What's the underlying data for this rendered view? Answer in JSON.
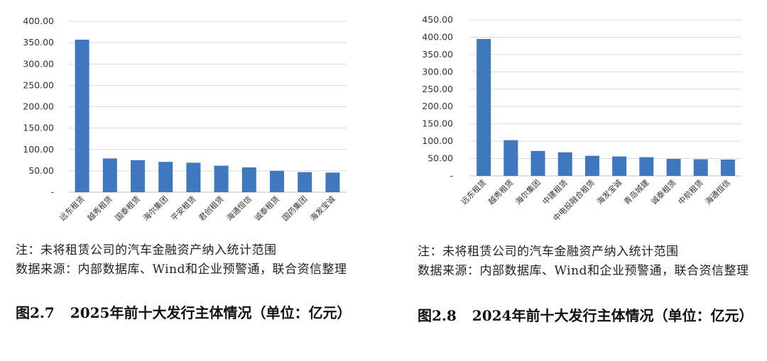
{
  "charts": [
    {
      "note": "注：未将租赁公司的汽车金融资产纳入统计范围",
      "source": "数据来源：内部数据库、Wind和企业预警通，联合资信整理",
      "fig_number": "图2.7",
      "fig_title": "2025年前十大发行主体情况（单位：亿元）",
      "colors": {
        "bar": "#3f78bf",
        "grid": "#d9d9d9",
        "axis": "#bfbfbf"
      }
    },
    {
      "note": "注：未将租赁公司的汽车金融资产纳入统计范围",
      "source": "数据来源：内部数据库、Wind和企业预警通，联合资信整理",
      "fig_number": "图2.8",
      "fig_title": "2024年前十大发行主体情况（单位：亿元）",
      "colors": {
        "bar": "#3f78bf",
        "grid": "#d9d9d9",
        "axis": "#bfbfbf"
      }
    }
  ],
  "chart_data": [
    {
      "type": "bar",
      "categories": [
        "远东租赁",
        "越秀租赁",
        "国泰租赁",
        "海尔集团",
        "平安租赁",
        "君创租赁",
        "海通恒信",
        "诚泰租赁",
        "国药集团",
        "海发宝诚"
      ],
      "values": [
        357,
        79,
        75,
        71,
        69,
        62,
        58,
        50,
        47,
        46
      ],
      "yticks": [
        "-",
        "50.00",
        "100.00",
        "150.00",
        "200.00",
        "250.00",
        "300.00",
        "350.00",
        "400.00"
      ],
      "ylim": [
        0,
        400
      ],
      "grid": true
    },
    {
      "type": "bar",
      "categories": [
        "远东租赁",
        "越秀租赁",
        "海尔集团",
        "中建租赁",
        "中电投融合租赁",
        "海发宝诚",
        "青岛城建",
        "诚泰租赁",
        "中航租赁",
        "海通恒信"
      ],
      "values": [
        395,
        103,
        72,
        68,
        58,
        56,
        54,
        49,
        48,
        47
      ],
      "yticks": [
        "-",
        "50.00",
        "100.00",
        "150.00",
        "200.00",
        "250.00",
        "300.00",
        "350.00",
        "400.00",
        "450.00"
      ],
      "ylim": [
        0,
        450
      ],
      "grid": true
    }
  ]
}
